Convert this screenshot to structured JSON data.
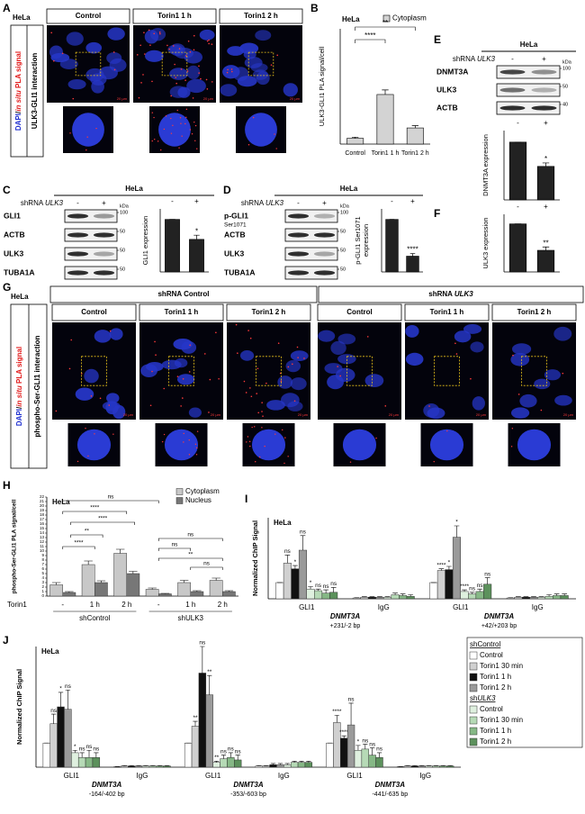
{
  "panel_labels": [
    "A",
    "B",
    "C",
    "D",
    "E",
    "F",
    "G",
    "H",
    "I",
    "J"
  ],
  "A": {
    "cell_line": "HeLa",
    "columns": [
      "Control",
      "Torin1 1 h",
      "Torin1 2 h"
    ],
    "stain_label": [
      "DAPI",
      "/",
      "in situ",
      " PLA signal"
    ],
    "interaction": "ULK3-GLI1 interaction",
    "scale_bar": "20 µm"
  },
  "C": {
    "cell_line": "HeLa",
    "shrna": [
      "shRNA ",
      "ULK3"
    ],
    "lanes": [
      "-",
      "+"
    ],
    "kda": "kDa",
    "bands": [
      "GLI1",
      "ACTB",
      "ULK3",
      "TUBA1A"
    ],
    "markers": [
      "100",
      "50",
      "50",
      "50"
    ]
  },
  "D": {
    "cell_line": "HeLa",
    "shrna": [
      "shRNA ",
      "ULK3"
    ],
    "lanes": [
      "-",
      "+"
    ],
    "kda": "kDa",
    "bands": [
      "p-GLI1",
      "ACTB",
      "ULK3",
      "TUBA1A"
    ],
    "band_sub": "Ser1071",
    "markers": [
      "100",
      "50",
      "50",
      "50"
    ]
  },
  "E": {
    "cell_line": "HeLa",
    "shrna": [
      "shRNA ",
      "ULK3"
    ],
    "lanes": [
      "-",
      "+"
    ],
    "kda": "kDa",
    "bands": [
      "DNMT3A",
      "ULK3",
      "ACTB"
    ],
    "markers": [
      "100",
      "50",
      "40"
    ]
  },
  "G": {
    "cell_line": "HeLa",
    "groups": [
      [
        "shRNA Control"
      ],
      [
        "shRNA ",
        "ULK3"
      ]
    ],
    "columns": [
      "Control",
      "Torin1 1 h",
      "Torin1 2 h",
      "Control",
      "Torin1 1 h",
      "Torin1 2 h"
    ],
    "stain_label": [
      "DAPI",
      "/",
      "in situ",
      " PLA signal"
    ],
    "interaction": "phospho-Ser-GLI1 interaction",
    "scale_bar": "20 µm"
  },
  "chart_data": [
    {
      "type": "bar",
      "title": "HeLa",
      "legend": "Cytoplasm",
      "y_label": "ULK3-GLI1 PLA signal/cell",
      "categories": [
        "Control",
        "Torin1 1 h",
        "Torin1 2 h"
      ],
      "values": [
        5,
        43,
        14
      ],
      "errors": [
        1,
        4,
        2
      ],
      "color": "#d3d3d3",
      "ylim": [
        0,
        100
      ],
      "significance": [
        "****",
        "**"
      ]
    },
    {
      "type": "bar",
      "y_label": "GLI1 expression",
      "categories": [
        "-",
        "+"
      ],
      "values": [
        1,
        0.62
      ],
      "errors": [
        0,
        0.08
      ],
      "color": "#222222",
      "ylim": [
        0,
        1.2
      ],
      "significance": "*"
    },
    {
      "type": "bar",
      "y_label": [
        "p-GLI1 Ser1071",
        "expression"
      ],
      "categories": [
        "-",
        "+"
      ],
      "values": [
        1,
        0.3
      ],
      "errors": [
        0,
        0.05
      ],
      "color": "#222222",
      "ylim": [
        0,
        1.2
      ],
      "significance": "****"
    },
    {
      "type": "bar",
      "y_label": "DNMT3A expression",
      "categories": [
        "-",
        "+"
      ],
      "values": [
        1,
        0.58
      ],
      "errors": [
        0,
        0.06
      ],
      "color": "#222222",
      "ylim": [
        0,
        1.2
      ],
      "significance": "*"
    },
    {
      "type": "bar",
      "y_label": "ULK3 expression",
      "categories": [
        "-",
        "+"
      ],
      "values": [
        1,
        0.45
      ],
      "errors": [
        0,
        0.07
      ],
      "color": "#222222",
      "ylim": [
        0,
        1.2
      ],
      "significance": "**"
    },
    {
      "type": "grouped_bar",
      "title": "HeLa",
      "y_label": "phospho-Ser-GLI1 PLA signal/cell",
      "x_label": "Torin1",
      "categories": [
        "-",
        "1 h",
        "2 h",
        "-",
        "1 h",
        "2 h"
      ],
      "groups": [
        "shControl",
        "shULK3"
      ],
      "series": [
        {
          "name": "Cytoplasm",
          "color": "#c8c8c8",
          "values": [
            2.5,
            7,
            9.5,
            1.5,
            3,
            3.5
          ],
          "errors": [
            0.5,
            0.8,
            0.9,
            0.3,
            0.5,
            0.5
          ]
        },
        {
          "name": "Nucleus",
          "color": "#777777",
          "values": [
            0.8,
            3,
            5,
            0.5,
            1,
            1
          ],
          "errors": [
            0.2,
            0.4,
            0.5,
            0.1,
            0.2,
            0.2
          ]
        }
      ],
      "ylim": [
        0,
        22
      ],
      "yticks": [
        0,
        1,
        2,
        3,
        4,
        5,
        6,
        7,
        8,
        9,
        10,
        11,
        12,
        13,
        14,
        15,
        16,
        17,
        18,
        19,
        20,
        21,
        22
      ],
      "significance": [
        "ns",
        "****",
        "****",
        "**",
        "****",
        "ns",
        "ns",
        "**",
        "ns"
      ]
    },
    {
      "type": "grouped_bar",
      "title": "HeLa",
      "y_label": "Normalized ChIP Signal",
      "categories": [
        "GLI1",
        "IgG",
        "GLI1",
        "IgG"
      ],
      "amplicons": [
        {
          "gene": "DNMT3A",
          "region": "+231/-2 bp"
        },
        {
          "gene": "DNMT3A",
          "region": "+42/+203 bp"
        }
      ],
      "series": [
        {
          "color": "#ffffff",
          "values": [
            1,
            0.05,
            1,
            0.05
          ],
          "errors": [
            0,
            0.02,
            0,
            0.02
          ]
        },
        {
          "color": "#d0d0d0",
          "values": [
            2.2,
            0.1,
            1.75,
            0.1
          ],
          "errors": [
            0.5,
            0.03,
            0.1,
            0.03
          ],
          "significance": [
            "ns",
            null,
            "****",
            null
          ]
        },
        {
          "color": "#111111",
          "values": [
            1.85,
            0.1,
            1.8,
            0.1
          ],
          "errors": [
            0.2,
            0.03,
            0.2,
            0.03
          ],
          "significance": [
            "*",
            null,
            "*",
            null
          ]
        },
        {
          "color": "#9a9a9a",
          "values": [
            3.0,
            0.1,
            3.8,
            0.1
          ],
          "errors": [
            0.9,
            0.03,
            0.7,
            0.03
          ],
          "significance": [
            "ns",
            null,
            "*",
            null
          ]
        },
        {
          "color": "#dff0df",
          "values": [
            0.6,
            0.1,
            0.45,
            0.1
          ],
          "errors": [
            0.15,
            0.03,
            0.1,
            0.03
          ],
          "significance": [
            "*",
            null,
            "****",
            null
          ]
        },
        {
          "color": "#b6dab6",
          "values": [
            0.5,
            0.25,
            0.3,
            0.15
          ],
          "errors": [
            0.1,
            0.1,
            0.1,
            0.1
          ],
          "significance": [
            "ns",
            null,
            "ns",
            null
          ]
        },
        {
          "color": "#86b886",
          "values": [
            0.35,
            0.2,
            0.45,
            0.2
          ],
          "errors": [
            0.2,
            0.1,
            0.15,
            0.1
          ],
          "significance": [
            "ns",
            null,
            "ns",
            null
          ]
        },
        {
          "color": "#5c915c",
          "values": [
            0.4,
            0.15,
            0.9,
            0.2
          ],
          "errors": [
            0.3,
            0.1,
            0.4,
            0.1
          ],
          "significance": [
            "ns",
            null,
            "ns",
            null
          ]
        }
      ],
      "ylim": [
        0,
        5
      ]
    },
    {
      "type": "grouped_bar",
      "title": "HeLa",
      "y_label": "Normalized ChIP Signal",
      "categories": [
        "GLI1",
        "IgG",
        "GLI1",
        "IgG",
        "GLI1",
        "IgG"
      ],
      "amplicons": [
        {
          "gene": "DNMT3A",
          "region": "-164/-402 bp"
        },
        {
          "gene": "DNMT3A",
          "region": "-353/-603 bp"
        },
        {
          "gene": "DNMT3A",
          "region": "-441/-635 bp"
        }
      ],
      "legend_groups": [
        [
          "shControl"
        ],
        [
          "sh",
          "ULK3"
        ]
      ],
      "series": [
        {
          "name": "Control",
          "color": "#ffffff",
          "values": [
            1,
            0.02,
            1,
            0.05,
            1,
            0.02
          ],
          "errors": [
            0,
            0.01,
            0,
            0.02,
            0,
            0.01
          ]
        },
        {
          "name": "Torin1 30 min",
          "color": "#d0d0d0",
          "values": [
            1.8,
            0.05,
            1.7,
            0.05,
            1.85,
            0.05
          ],
          "errors": [
            0.4,
            0.02,
            0.2,
            0.02,
            0.3,
            0.02
          ],
          "significance": [
            "ns",
            null,
            "**",
            null,
            "****",
            null
          ]
        },
        {
          "name": "Torin1 1 h",
          "color": "#111111",
          "values": [
            2.5,
            0.05,
            3.9,
            0.1,
            1.2,
            0.05
          ],
          "errors": [
            0.6,
            0.02,
            1.1,
            0.05,
            0.1,
            0.02
          ],
          "significance": [
            "*",
            null,
            "ns",
            null,
            "****",
            null
          ]
        },
        {
          "name": "Torin1 2 h",
          "color": "#9a9a9a",
          "values": [
            2.4,
            0.05,
            3.0,
            0.1,
            1.75,
            0.05
          ],
          "errors": [
            0.8,
            0.02,
            0.8,
            0.05,
            0.9,
            0.02
          ],
          "significance": [
            "ns",
            null,
            "**",
            null,
            "ns",
            null
          ]
        },
        {
          "name": "Control",
          "color": "#dff0df",
          "values": [
            0.6,
            0.05,
            0.2,
            0.1,
            0.7,
            0.05
          ],
          "errors": [
            0.1,
            0.02,
            0.05,
            0.05,
            0.2,
            0.02
          ],
          "significance": [
            "*",
            null,
            "**",
            null,
            "*",
            null
          ]
        },
        {
          "name": "Torin1 30 min",
          "color": "#b6dab6",
          "values": [
            0.4,
            0.05,
            0.35,
            0.2,
            0.75,
            0.05
          ],
          "errors": [
            0.2,
            0.02,
            0.15,
            0.05,
            0.2,
            0.02
          ],
          "significance": [
            "ns",
            null,
            "ns",
            null,
            "ns",
            null
          ]
        },
        {
          "name": "Torin1 1 h",
          "color": "#86b886",
          "values": [
            0.4,
            0.05,
            0.4,
            0.2,
            0.5,
            0.05
          ],
          "errors": [
            0.3,
            0.02,
            0.2,
            0.05,
            0.3,
            0.02
          ],
          "significance": [
            "ns",
            null,
            "ns",
            null,
            "ns",
            null
          ]
        },
        {
          "name": "Torin1 2 h",
          "color": "#5c915c",
          "values": [
            0.4,
            0.05,
            0.3,
            0.2,
            0.4,
            0.05
          ],
          "errors": [
            0.2,
            0.02,
            0.2,
            0.05,
            0.2,
            0.02
          ],
          "significance": [
            "ns",
            null,
            "ns",
            null,
            "ns",
            null
          ]
        }
      ],
      "ylim": [
        0,
        5
      ]
    }
  ]
}
